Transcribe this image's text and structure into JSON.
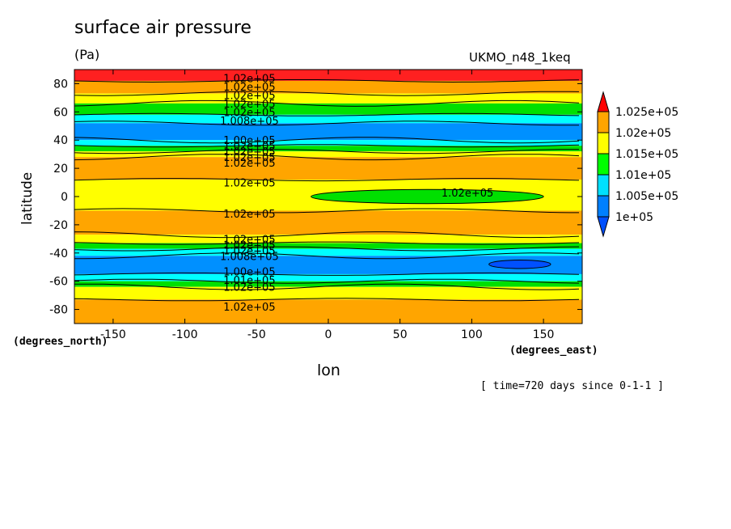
{
  "chart_data": {
    "type": "contour",
    "title": "surface air pressure",
    "units": "(Pa)",
    "model": "UKMO_n48_1keq",
    "xlabel": "lon",
    "ylabel": "latitude",
    "x_units": "(degrees_east)",
    "y_units": "(degrees_north)",
    "time_note": "[ time=720 days since 0-1-1 ]",
    "xlim": [
      -177,
      177
    ],
    "ylim": [
      -90,
      90
    ],
    "x_ticks": [
      -150,
      -100,
      -50,
      0,
      50,
      100,
      150
    ],
    "x_tick_labels": [
      "-150",
      "-100",
      "-50",
      "0",
      "50",
      "100",
      "150"
    ],
    "y_ticks": [
      -80,
      -60,
      -40,
      -20,
      0,
      20,
      40,
      60,
      80
    ],
    "y_tick_labels": [
      "-80",
      "-60",
      "-40",
      "-20",
      "0",
      "20",
      "40",
      "60",
      "80"
    ],
    "colorbar": {
      "levels": [
        "1e+05",
        "1.005e+05",
        "1.01e+05",
        "1.015e+05",
        "1.02e+05",
        "1.025e+05"
      ],
      "colors": [
        "#0080ff",
        "#00e0ff",
        "#00ff00",
        "#ffff00",
        "#ffa500",
        "#ff2020"
      ],
      "extend_low_color": "#0050ff",
      "extend_high_color": "#ff0000"
    },
    "bands_by_latitude": [
      {
        "lat_from": 90,
        "lat_to": 82,
        "class": "red"
      },
      {
        "lat_from": 82,
        "lat_to": 73,
        "class": "orange"
      },
      {
        "lat_from": 73,
        "lat_to": 66,
        "class": "yellow"
      },
      {
        "lat_from": 66,
        "lat_to": 58,
        "class": "green"
      },
      {
        "lat_from": 58,
        "lat_to": 52,
        "class": "cyan"
      },
      {
        "lat_from": 52,
        "lat_to": 40,
        "class": "blue"
      },
      {
        "lat_from": 40,
        "lat_to": 36,
        "class": "cyan"
      },
      {
        "lat_from": 36,
        "lat_to": 32,
        "class": "green"
      },
      {
        "lat_from": 32,
        "lat_to": 28,
        "class": "yellow"
      },
      {
        "lat_from": 28,
        "lat_to": 12,
        "class": "orange"
      },
      {
        "lat_from": 12,
        "lat_to": -10,
        "class": "yellow"
      },
      {
        "lat_from": -10,
        "lat_to": -27,
        "class": "orange"
      },
      {
        "lat_from": -27,
        "lat_to": -33,
        "class": "yellow"
      },
      {
        "lat_from": -33,
        "lat_to": -37,
        "class": "green"
      },
      {
        "lat_from": -37,
        "lat_to": -42,
        "class": "cyan"
      },
      {
        "lat_from": -42,
        "lat_to": -55,
        "class": "blue"
      },
      {
        "lat_from": -55,
        "lat_to": -60,
        "class": "cyan"
      },
      {
        "lat_from": -60,
        "lat_to": -64,
        "class": "green"
      },
      {
        "lat_from": -64,
        "lat_to": -73,
        "class": "yellow"
      },
      {
        "lat_from": -73,
        "lat_to": -90,
        "class": "orange"
      }
    ],
    "features": [
      {
        "kind": "low_pressure_tongue",
        "class": "green",
        "lon_from": -12,
        "lon_to": 150,
        "lat_from": -5,
        "lat_to": 5
      },
      {
        "kind": "deep_low_cell",
        "class": "deepblue",
        "lon_from": 112,
        "lon_to": 155,
        "lat_from": -51,
        "lat_to": -45
      }
    ],
    "contour_labels": [
      {
        "text": "1.02e+05",
        "lon": -55,
        "lat": 84
      },
      {
        "text": "1.02e+05",
        "lon": -55,
        "lat": 78
      },
      {
        "text": "1.02e+05",
        "lon": -55,
        "lat": 72
      },
      {
        "text": "1.02e+05",
        "lon": -55,
        "lat": 66
      },
      {
        "text": "1.02e+05",
        "lon": -55,
        "lat": 60
      },
      {
        "text": "1.008e+05",
        "lon": -55,
        "lat": 54
      },
      {
        "text": "1.00e+05",
        "lon": -55,
        "lat": 40
      },
      {
        "text": "1.02e+05",
        "lon": -55,
        "lat": 36
      },
      {
        "text": "1.02e+05",
        "lon": -55,
        "lat": 32
      },
      {
        "text": "1.02e+05",
        "lon": -55,
        "lat": 28
      },
      {
        "text": "1.02e+05",
        "lon": -55,
        "lat": 24
      },
      {
        "text": "1.02e+05",
        "lon": -55,
        "lat": 10
      },
      {
        "text": "1.02e+05",
        "lon": 97,
        "lat": 3
      },
      {
        "text": "1.02e+05",
        "lon": -55,
        "lat": -12
      },
      {
        "text": "1.02e+05",
        "lon": -55,
        "lat": -30
      },
      {
        "text": "1.02e+05",
        "lon": -55,
        "lat": -34
      },
      {
        "text": "1.02e+05",
        "lon": -55,
        "lat": -38
      },
      {
        "text": "1.008e+05",
        "lon": -55,
        "lat": -42
      },
      {
        "text": "1.00e+05",
        "lon": -55,
        "lat": -53
      },
      {
        "text": "1.01e+05",
        "lon": -55,
        "lat": -59
      },
      {
        "text": "1.02e+05",
        "lon": -55,
        "lat": -64
      },
      {
        "text": "1.02e+05",
        "lon": -55,
        "lat": -78
      }
    ]
  }
}
